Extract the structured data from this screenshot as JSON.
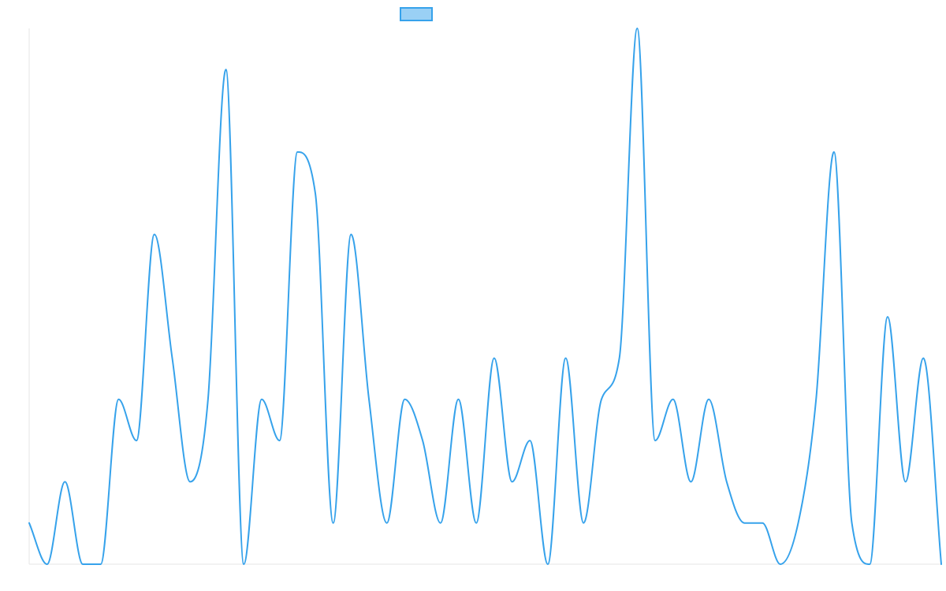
{
  "chart_data": {
    "type": "line",
    "title": "",
    "xlabel": "",
    "ylabel": "",
    "grid": false,
    "legend": "top-center",
    "ylim": [
      0,
      13
    ],
    "x": [
      0,
      1,
      2,
      3,
      4,
      5,
      6,
      7,
      8,
      9,
      10,
      11,
      12,
      13,
      14,
      15,
      16,
      17,
      18,
      19,
      20,
      21,
      22,
      23,
      24,
      25,
      26,
      27,
      28,
      29,
      30,
      31,
      32,
      33,
      34,
      35,
      36,
      37,
      38,
      39,
      40,
      41,
      42,
      43,
      44,
      45,
      46,
      47,
      48,
      49,
      50,
      51
    ],
    "series": [
      {
        "name": "",
        "color": "#36a2eb",
        "fill": "#9ad0f5",
        "values": [
          1,
          0,
          2,
          0,
          0,
          4,
          3,
          8,
          5,
          2,
          4,
          12,
          0,
          4,
          3,
          10,
          9,
          1,
          8,
          4,
          1,
          4,
          3,
          1,
          4,
          1,
          5,
          2,
          3,
          0,
          5,
          1,
          4,
          5,
          13,
          3,
          4,
          2,
          4,
          2,
          1,
          1,
          0,
          1,
          4,
          10,
          1,
          0,
          6,
          2,
          5,
          0
        ]
      }
    ]
  }
}
